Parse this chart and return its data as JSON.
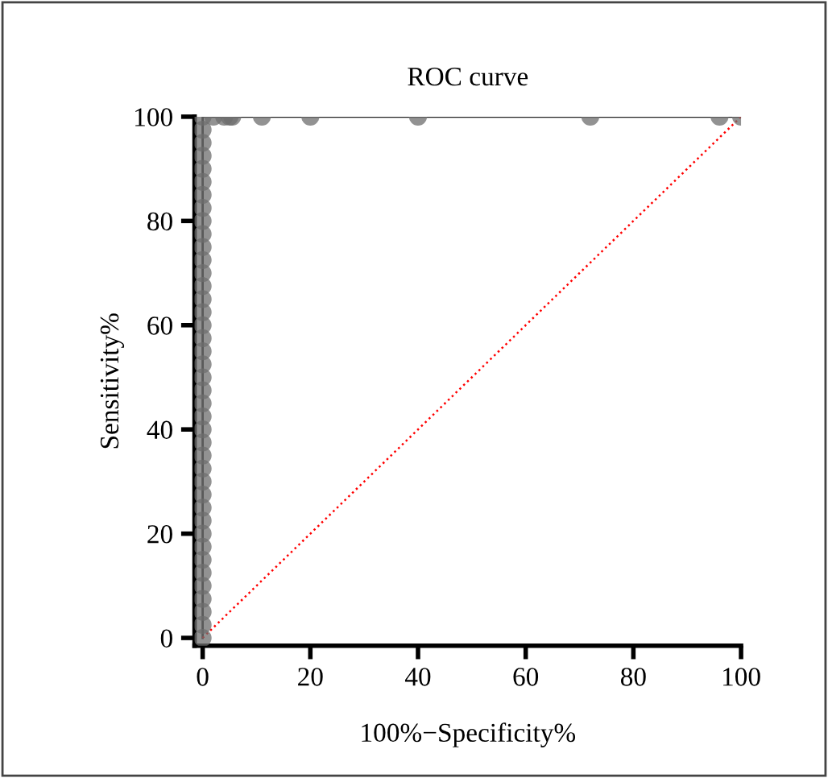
{
  "chart_data": {
    "type": "line",
    "title": "ROC curve",
    "xlabel": "100%−Specificity%",
    "ylabel": "Sensitivity%",
    "series": [
      {
        "color": "#6e6e6e",
        "marker": "circle",
        "x": [
          0,
          0,
          0,
          0,
          0,
          0,
          0,
          0,
          0,
          0,
          0,
          0,
          0,
          0,
          0,
          0,
          0,
          0,
          0,
          0,
          0,
          0,
          0,
          0,
          0,
          0,
          0,
          0,
          0,
          0,
          0,
          0,
          0,
          0,
          0,
          0,
          0,
          0,
          0,
          0,
          0,
          2,
          4,
          5,
          5.5,
          11,
          20,
          40,
          72,
          96,
          100
        ],
        "values": [
          0,
          2.5,
          5,
          7.5,
          10,
          12.5,
          15,
          17.5,
          20,
          22.5,
          25,
          27.5,
          30,
          32.5,
          35,
          37.5,
          40,
          42.5,
          45,
          47.5,
          50,
          52.5,
          55,
          57.5,
          60,
          62.5,
          65,
          67.5,
          70,
          72.5,
          75,
          77.5,
          80,
          82.5,
          85,
          87.5,
          90,
          92.5,
          95,
          97.5,
          100,
          100,
          100,
          100,
          100,
          100,
          100,
          100,
          100,
          100,
          100
        ]
      },
      {
        "color": "#ff0000",
        "marker": "none",
        "line_style": "dotted",
        "x": [
          0,
          100
        ],
        "values": [
          0,
          100
        ]
      }
    ],
    "xlim": [
      -1.5,
      100
    ],
    "ylim": [
      -1.5,
      100
    ],
    "xticks": [
      0,
      20,
      40,
      60,
      80,
      100
    ],
    "yticks": [
      0,
      20,
      40,
      60,
      80,
      100
    ],
    "grid": false,
    "legend": false
  }
}
